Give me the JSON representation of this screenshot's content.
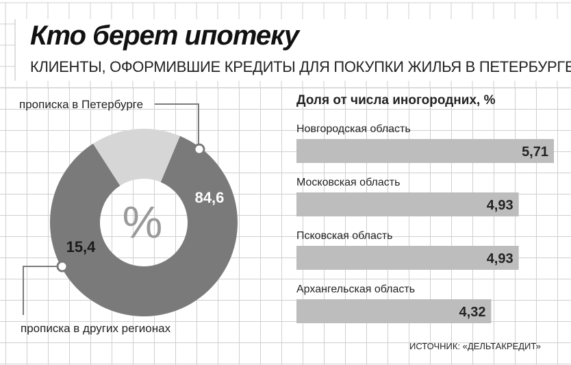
{
  "header": {
    "title": "Кто берет ипотеку",
    "subtitle": "КЛИЕНТЫ, ОФОРМИВШИЕ КРЕДИТЫ ДЛЯ ПОКУПКИ ЖИЛЬЯ В ПЕТЕРБУРГЕ"
  },
  "source": "ИСТОЧНИК: «ДЕЛЬТАКРЕДИТ»",
  "colors": {
    "grid": "#cfcfcf",
    "donut_dark": "#7a7a7a",
    "donut_light": "#d6d6d6",
    "bar": "#bdbdbd"
  },
  "chart_data": [
    {
      "type": "pie",
      "variant": "donut",
      "center_label": "%",
      "slices": [
        {
          "label": "прописка в Петербурге",
          "value": 84.6,
          "value_label": "84,6"
        },
        {
          "label": "прописка в других регионах",
          "value": 15.4,
          "value_label": "15,4"
        }
      ]
    },
    {
      "type": "bar",
      "orientation": "horizontal",
      "title": "Доля от числа иногородних, %",
      "categories": [
        "Новгородская область",
        "Московская область",
        "Псковская область",
        "Архангельская область"
      ],
      "values": [
        5.71,
        4.93,
        4.93,
        4.32
      ],
      "value_labels": [
        "5,71",
        "4,93",
        "4,93",
        "4,32"
      ]
    }
  ]
}
